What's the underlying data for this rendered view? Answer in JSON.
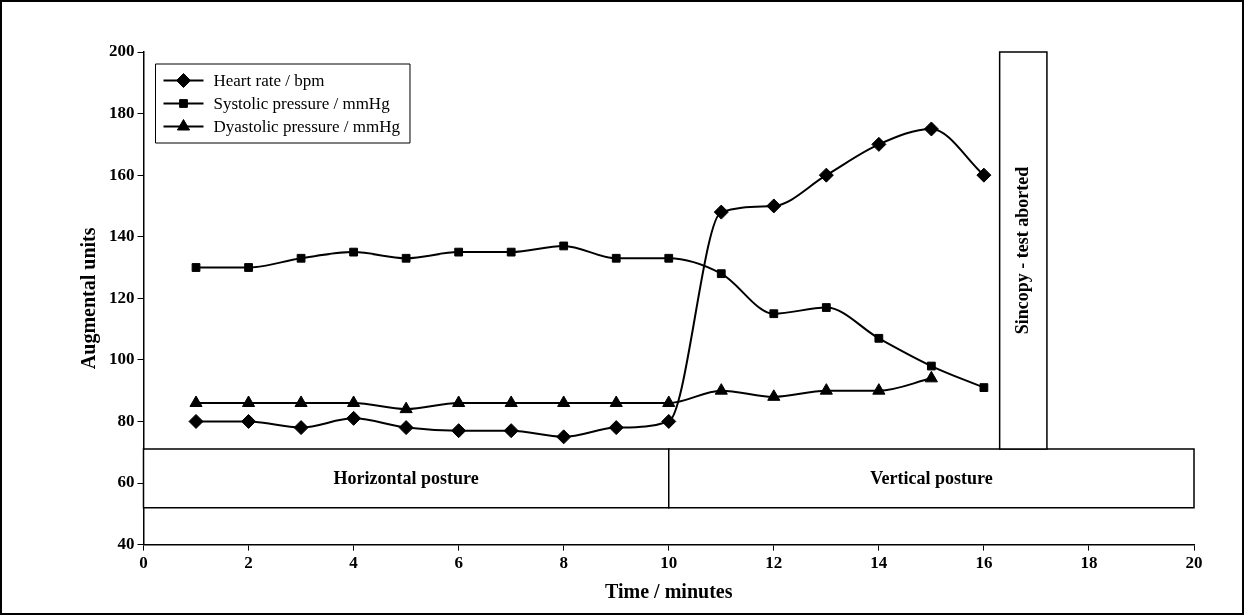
{
  "chart_data": {
    "type": "line",
    "xlabel": "Time / minutes",
    "ylabel": "Augmental units",
    "x": [
      1,
      2,
      3,
      4,
      5,
      6,
      7,
      8,
      9,
      10,
      11,
      12,
      13,
      14,
      15,
      16
    ],
    "series": [
      {
        "name": "Heart rate / bpm",
        "color": "#000000",
        "marker": "diamond",
        "values": [
          80,
          80,
          78,
          81,
          78,
          77,
          77,
          75,
          78,
          80,
          148,
          150,
          160,
          170,
          175,
          160
        ]
      },
      {
        "name": "Systolic pressure / mmHg",
        "color": "#000000",
        "marker": "square",
        "values": [
          130,
          130,
          133,
          135,
          133,
          135,
          135,
          137,
          133,
          133,
          128,
          115,
          117,
          107,
          98,
          91
        ]
      },
      {
        "name": "Dyastolic pressure / mmHg",
        "color": "#000000",
        "marker": "triangle",
        "x": [
          1,
          2,
          3,
          4,
          5,
          6,
          7,
          8,
          9,
          10,
          11,
          12,
          13,
          14,
          15
        ],
        "values": [
          86,
          86,
          86,
          86,
          84,
          86,
          86,
          86,
          86,
          86,
          90,
          88,
          90,
          90,
          94
        ]
      }
    ],
    "xlim": [
      0,
      20
    ],
    "xticks": [
      0,
      2,
      4,
      6,
      8,
      10,
      12,
      14,
      16,
      18,
      20
    ],
    "ylim": [
      40,
      200
    ],
    "yticks": [
      40,
      60,
      80,
      100,
      120,
      140,
      160,
      180,
      200
    ],
    "legend": "top left",
    "bands": [
      {
        "axis": "x",
        "from": 0,
        "to": 10,
        "label": "Horizontal posture"
      },
      {
        "axis": "x",
        "from": 10,
        "to": 20,
        "label": "Vertical posture"
      },
      {
        "axis": "x",
        "from": 16.3,
        "to": 17.2,
        "label": "Sincopy - test aborted"
      }
    ]
  }
}
